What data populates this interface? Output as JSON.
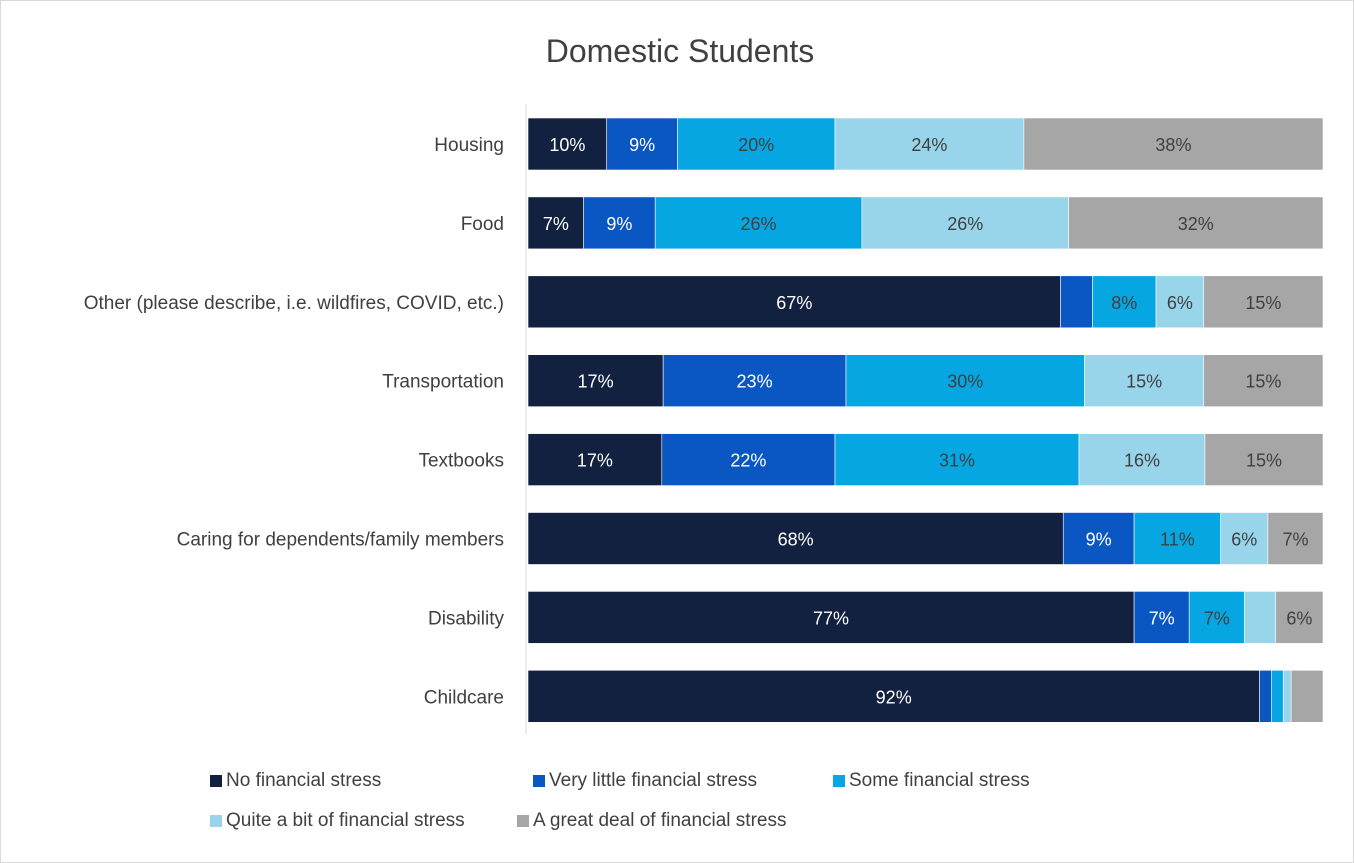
{
  "chart_data": {
    "type": "bar",
    "orientation": "horizontal",
    "stacked": "100%",
    "title": "Domestic Students",
    "categories": [
      "Housing",
      "Food",
      "Other (please describe, i.e. wildfires, COVID, etc.)",
      "Transportation",
      "Textbooks",
      "Caring for dependents/family members",
      "Disability",
      "Childcare"
    ],
    "series": [
      {
        "name": "No financial stress",
        "color": "#12213f",
        "values": [
          10,
          7,
          67,
          17,
          17,
          68,
          77,
          92
        ]
      },
      {
        "name": "Very little financial stress",
        "color": "#0a56c2",
        "values": [
          9,
          9,
          4,
          23,
          22,
          9,
          7,
          1.5
        ]
      },
      {
        "name": "Some financial stress",
        "color": "#06a6e2",
        "values": [
          20,
          26,
          8,
          30,
          31,
          11,
          7,
          1.5
        ]
      },
      {
        "name": "Quite a bit of financial stress",
        "color": "#98d5ea",
        "values": [
          24,
          26,
          6,
          15,
          16,
          6,
          4,
          1
        ]
      },
      {
        "name": "A great deal of financial stress",
        "color": "#a6a6a6",
        "values": [
          38,
          32,
          15,
          15,
          15,
          7,
          6,
          4
        ]
      }
    ],
    "data_labels": [
      [
        "10%",
        "9%",
        "20%",
        "24%",
        "38%"
      ],
      [
        "7%",
        "9%",
        "26%",
        "26%",
        "32%"
      ],
      [
        "67%",
        "",
        "8%",
        "6%",
        "15%"
      ],
      [
        "17%",
        "23%",
        "30%",
        "15%",
        "15%"
      ],
      [
        "17%",
        "22%",
        "31%",
        "16%",
        "15%"
      ],
      [
        "68%",
        "9%",
        "11%",
        "6%",
        "7%"
      ],
      [
        "77%",
        "7%",
        "7%",
        "",
        "6%"
      ],
      [
        "92%",
        "",
        "",
        "",
        ""
      ]
    ],
    "label_colors": [
      "#ffffff",
      "#ffffff",
      "#404040",
      "#404040",
      "#404040"
    ],
    "xlim": [
      0,
      100
    ],
    "grid": false,
    "legend_position": "bottom"
  }
}
